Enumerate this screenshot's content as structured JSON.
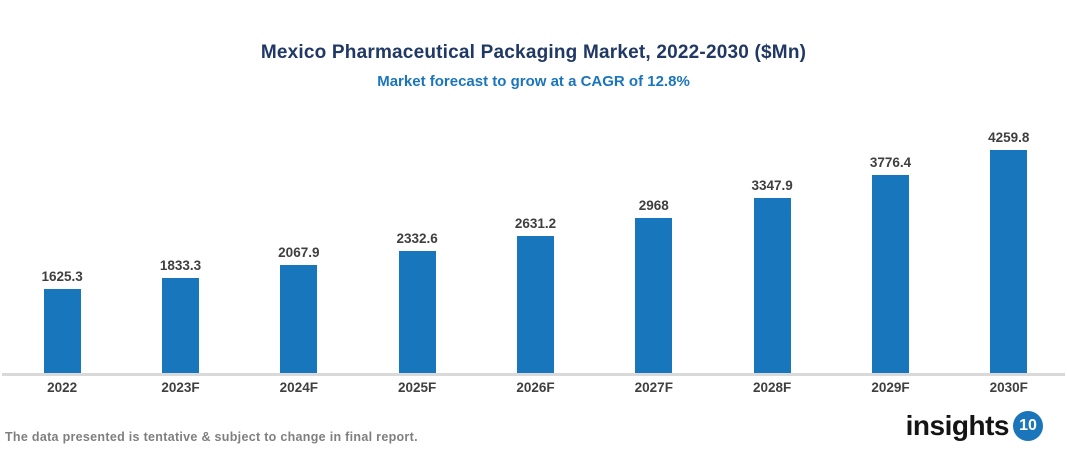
{
  "chart_data": {
    "type": "bar",
    "title": "Mexico Pharmaceutical Packaging Market, 2022-2030 ($Mn)",
    "subtitle": "Market forecast to grow at a CAGR of 12.8%",
    "categories": [
      "2022",
      "2023F",
      "2024F",
      "2025F",
      "2026F",
      "2027F",
      "2028F",
      "2029F",
      "2030F"
    ],
    "values": [
      1625.3,
      1833.3,
      2067.9,
      2332.6,
      2631.2,
      2968,
      3347.9,
      3776.4,
      4259.8
    ],
    "value_labels": [
      "1625.3",
      "1833.3",
      "2067.9",
      "2332.6",
      "2631.2",
      "2968",
      "3347.9",
      "3776.4",
      "4259.8"
    ],
    "xlabel": "",
    "ylabel": "",
    "ylim": [
      0,
      4500
    ],
    "grid": false,
    "legend": "none",
    "colors": {
      "bar": "#1877BC",
      "title": "#203864",
      "subtitle": "#1B75BB",
      "data_label": "#3F3F3F",
      "tick_label": "#3F3F3F",
      "axis_line": "#D9D9D9"
    }
  },
  "footer": {
    "disclaimer": "The data presented is tentative & subject to change in final report.",
    "disclaimer_color": "#7F7F7F",
    "logo_text": "insights",
    "logo_number": "10",
    "logo_circle_color": "#1B75BB"
  }
}
